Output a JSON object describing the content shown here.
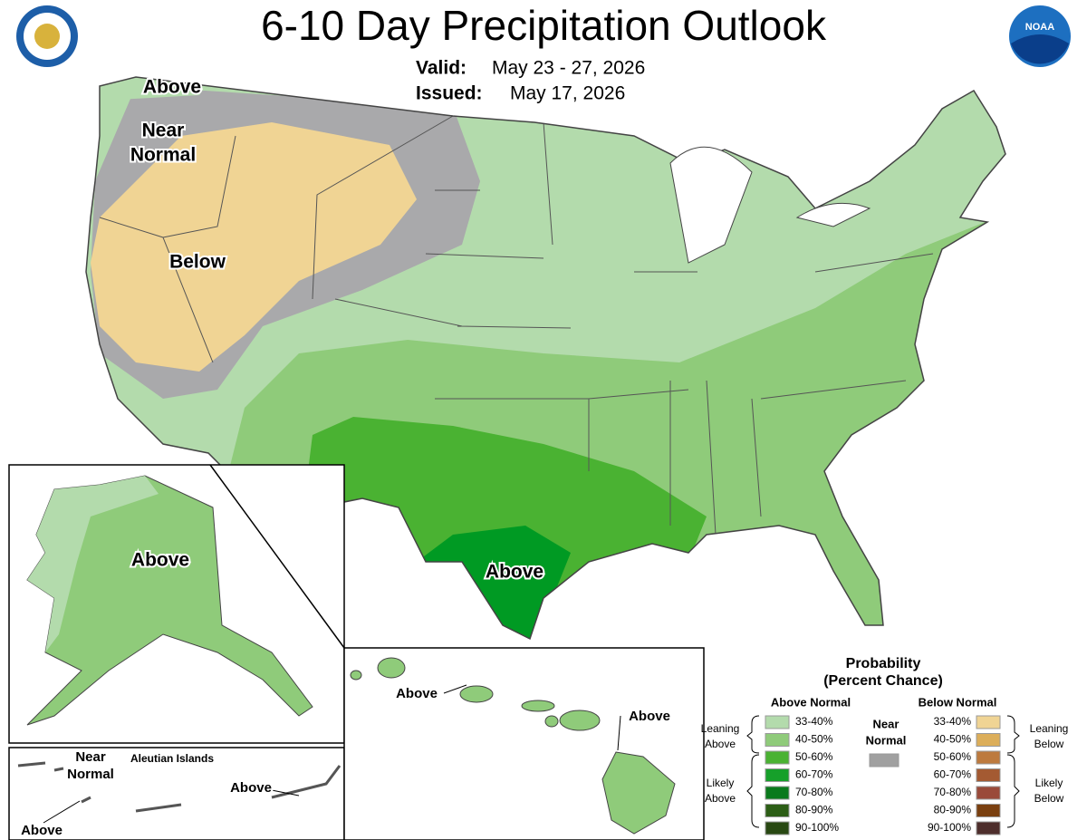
{
  "header": {
    "title": "6-10 Day Precipitation Outlook",
    "valid_label": "Valid:",
    "valid": "May 23 - 27, 2026",
    "issued_label": "Issued:",
    "issued": "May 17, 2026"
  },
  "map_labels": [
    {
      "lines": [
        "Above"
      ]
    },
    {
      "lines": [
        "Near",
        "Normal"
      ]
    },
    {
      "lines": [
        "Below"
      ]
    },
    {
      "lines": [
        "Above"
      ]
    },
    {
      "lines": [
        "Above"
      ]
    },
    {
      "lines": [
        "Above"
      ]
    },
    {
      "lines": [
        "Above"
      ]
    },
    {
      "lines": [
        "Near",
        "Normal"
      ]
    },
    {
      "lines": [
        "Above"
      ]
    },
    {
      "lines": [
        "Above"
      ]
    },
    {
      "lines": [
        "Aleutian Islands"
      ]
    }
  ],
  "legend": {
    "title": [
      "Probability",
      "(Percent Chance)"
    ],
    "above_heading": "Above Normal",
    "below_heading": "Below Normal",
    "near_label": [
      "Near",
      "Normal"
    ],
    "near_color": "#a0a0a0",
    "above": [
      {
        "range": "33-40%",
        "color": "#b3dbac"
      },
      {
        "range": "40-50%",
        "color": "#8fcb7a"
      },
      {
        "range": "50-60%",
        "color": "#4ab232"
      },
      {
        "range": "60-70%",
        "color": "#16a02a"
      },
      {
        "range": "70-80%",
        "color": "#0a7a1c"
      },
      {
        "range": "80-90%",
        "color": "#2c5e16"
      },
      {
        "range": "90-100%",
        "color": "#284812"
      }
    ],
    "below": [
      {
        "range": "33-40%",
        "color": "#f0d494"
      },
      {
        "range": "40-50%",
        "color": "#dcae5a"
      },
      {
        "range": "50-60%",
        "color": "#bd7a3e"
      },
      {
        "range": "60-70%",
        "color": "#a45a32"
      },
      {
        "range": "70-80%",
        "color": "#9a4a3a"
      },
      {
        "range": "80-90%",
        "color": "#7a4010"
      },
      {
        "range": "90-100%",
        "color": "#4e2e2c"
      }
    ],
    "leaning_above": [
      "Leaning",
      "Above"
    ],
    "likely_above": [
      "Likely",
      "Above"
    ],
    "leaning_below": [
      "Leaning",
      "Below"
    ],
    "likely_below": [
      "Likely",
      "Below"
    ]
  }
}
